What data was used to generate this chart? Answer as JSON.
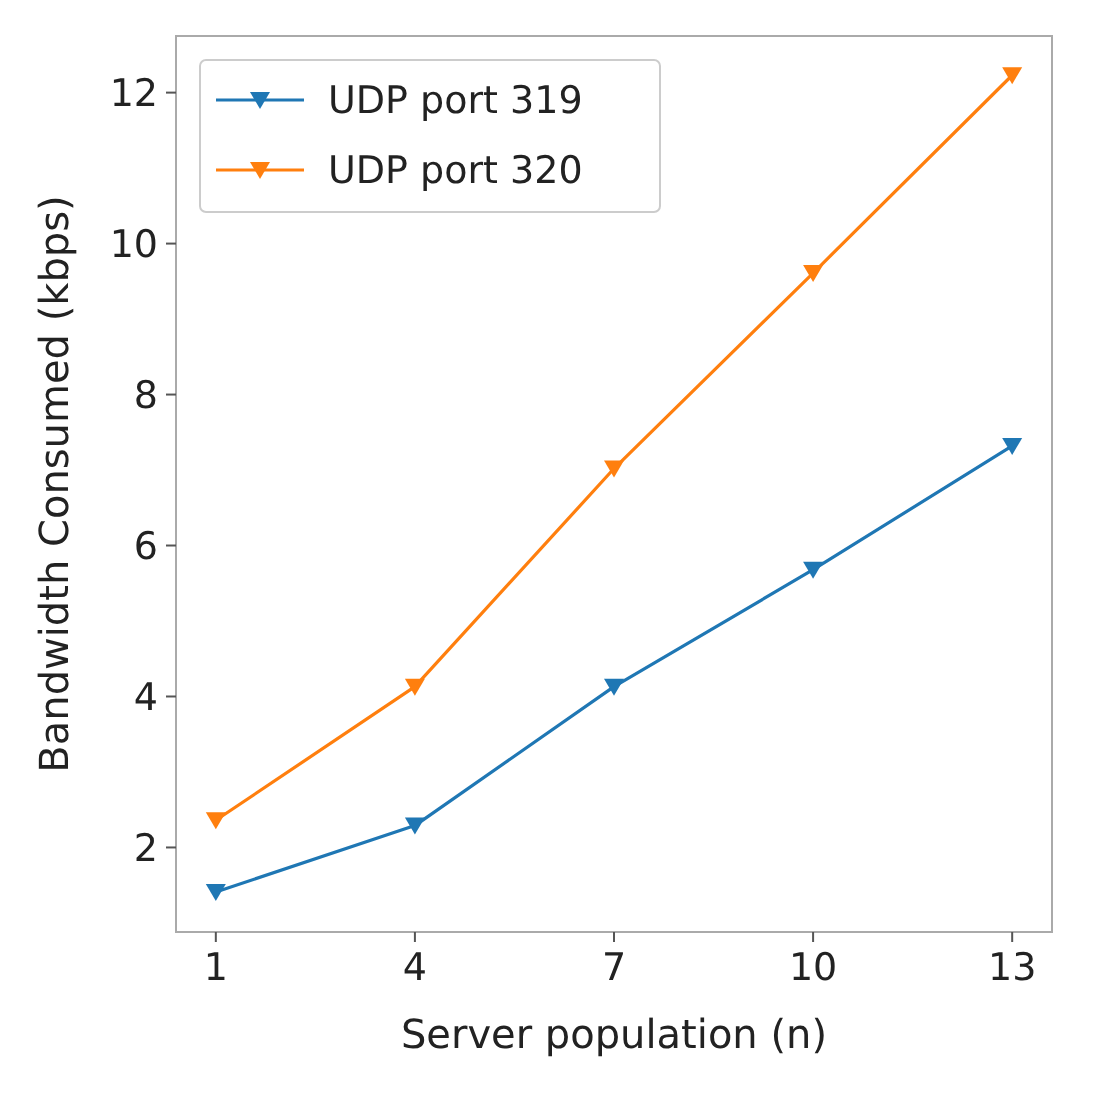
{
  "chart_data": {
    "type": "line",
    "xlabel": "Server population (n)",
    "ylabel": "Bandwidth Consumed (kbps)",
    "x": [
      1,
      4,
      7,
      10,
      13
    ],
    "series": [
      {
        "name": "UDP port 319",
        "color": "#1f77b4",
        "values": [
          1.41,
          2.29,
          4.13,
          5.68,
          7.32
        ]
      },
      {
        "name": "UDP port 320",
        "color": "#ff7f0e",
        "values": [
          2.36,
          4.13,
          7.02,
          9.61,
          12.23
        ]
      }
    ],
    "xlim": [
      0.4,
      13.6
    ],
    "xticks": [
      1,
      4,
      7,
      10,
      13
    ],
    "ylim": [
      0.88,
      12.75
    ],
    "yticks": [
      2,
      4,
      6,
      8,
      10,
      12
    ],
    "grid": false,
    "legend": "top left",
    "marker": "triangle",
    "line_style": "solid"
  }
}
